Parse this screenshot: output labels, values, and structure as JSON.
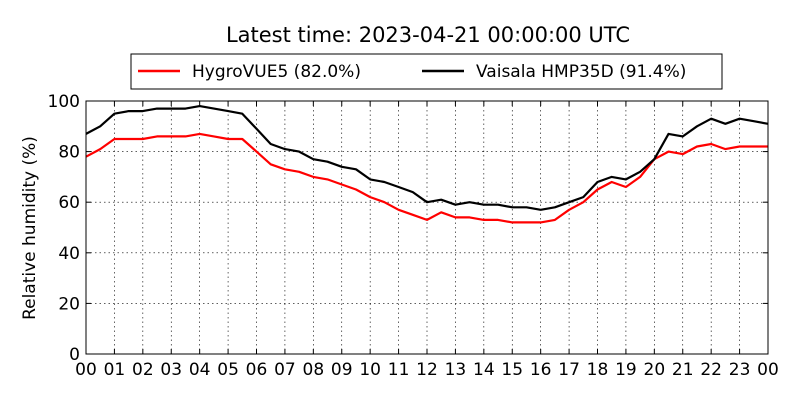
{
  "chart_data": {
    "type": "line",
    "title": "Latest time: 2023-04-21 00:00:00 UTC",
    "xlabel": "",
    "ylabel": "Relative humidity (%)",
    "xlim": [
      0,
      24
    ],
    "ylim": [
      0,
      100
    ],
    "x_ticks": [
      "00",
      "01",
      "02",
      "03",
      "04",
      "05",
      "06",
      "07",
      "08",
      "09",
      "10",
      "11",
      "12",
      "13",
      "14",
      "15",
      "16",
      "17",
      "18",
      "19",
      "20",
      "21",
      "22",
      "23",
      "00"
    ],
    "y_ticks": [
      0,
      20,
      40,
      60,
      80,
      100
    ],
    "grid": true,
    "legend_position": "top-center",
    "series": [
      {
        "name": "HygroVUE5 (82.0%)",
        "color": "#ff0000",
        "x": [
          0,
          0.5,
          1,
          1.5,
          2,
          2.5,
          3,
          3.5,
          4,
          4.5,
          5,
          5.5,
          6,
          6.5,
          7,
          7.5,
          8,
          8.5,
          9,
          9.5,
          10,
          10.5,
          11,
          11.5,
          12,
          12.5,
          13,
          13.5,
          14,
          14.5,
          15,
          15.5,
          16,
          16.5,
          17,
          17.5,
          18,
          18.5,
          19,
          19.5,
          20,
          20.5,
          21,
          21.5,
          22,
          22.5,
          23,
          23.5,
          24
        ],
        "values": [
          78,
          81,
          85,
          85,
          85,
          86,
          86,
          86,
          87,
          86,
          85,
          85,
          80,
          75,
          73,
          72,
          70,
          69,
          67,
          65,
          62,
          60,
          57,
          55,
          53,
          56,
          54,
          54,
          53,
          53,
          52,
          52,
          52,
          53,
          57,
          60,
          65,
          68,
          66,
          70,
          77,
          80,
          79,
          82,
          83,
          81,
          82,
          82,
          82
        ]
      },
      {
        "name": "Vaisala HMP35D (91.4%)",
        "color": "#000000",
        "x": [
          0,
          0.5,
          1,
          1.5,
          2,
          2.5,
          3,
          3.5,
          4,
          4.5,
          5,
          5.5,
          6,
          6.5,
          7,
          7.5,
          8,
          8.5,
          9,
          9.5,
          10,
          10.5,
          11,
          11.5,
          12,
          12.5,
          13,
          13.5,
          14,
          14.5,
          15,
          15.5,
          16,
          16.5,
          17,
          17.5,
          18,
          18.5,
          19,
          19.5,
          20,
          20.5,
          21,
          21.5,
          22,
          22.5,
          23,
          23.5,
          24
        ],
        "values": [
          87,
          90,
          95,
          96,
          96,
          97,
          97,
          97,
          98,
          97,
          96,
          95,
          89,
          83,
          81,
          80,
          77,
          76,
          74,
          73,
          69,
          68,
          66,
          64,
          60,
          61,
          59,
          60,
          59,
          59,
          58,
          58,
          57,
          58,
          60,
          62,
          68,
          70,
          69,
          72,
          77,
          87,
          86,
          90,
          93,
          91,
          93,
          92,
          91
        ]
      }
    ]
  }
}
